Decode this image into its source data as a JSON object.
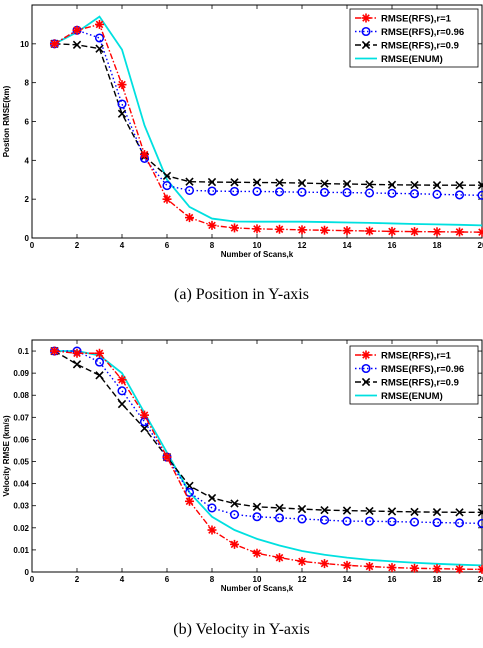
{
  "chart_data": [
    {
      "type": "line",
      "caption": "(a) Position in Y-axis",
      "xlabel": "Number of Scans,k",
      "ylabel": "Postion RMSE(km)",
      "xlim": [
        0,
        20
      ],
      "ylim": [
        0,
        12
      ],
      "xticks": [
        0,
        2,
        4,
        6,
        8,
        10,
        12,
        14,
        16,
        18,
        20
      ],
      "yticks": [
        0,
        2,
        4,
        6,
        8,
        10,
        12
      ],
      "ytick_labels": [
        "0",
        "2",
        "4",
        "6",
        "8",
        "10",
        ""
      ],
      "x": [
        1,
        2,
        3,
        4,
        5,
        6,
        7,
        8,
        9,
        10,
        11,
        12,
        13,
        14,
        15,
        16,
        17,
        18,
        19,
        20
      ],
      "legend_position": "top-right",
      "series": [
        {
          "name": "RMSE(RFS),r=1",
          "color": "#ff0000",
          "style": "dashdot",
          "marker": "star",
          "values": [
            10.0,
            10.7,
            11.0,
            7.9,
            4.3,
            2.0,
            1.05,
            0.65,
            0.52,
            0.47,
            0.45,
            0.42,
            0.4,
            0.38,
            0.36,
            0.34,
            0.33,
            0.32,
            0.31,
            0.3
          ]
        },
        {
          "name": "RMSE(RFS),r=0.96",
          "color": "#0000ff",
          "style": "dotted",
          "marker": "circle",
          "values": [
            10.0,
            10.7,
            10.3,
            6.9,
            4.1,
            2.7,
            2.45,
            2.42,
            2.4,
            2.4,
            2.38,
            2.36,
            2.35,
            2.34,
            2.32,
            2.3,
            2.28,
            2.25,
            2.22,
            2.2
          ]
        },
        {
          "name": "RMSE(RFS),r=0.9",
          "color": "#000000",
          "style": "dashed",
          "marker": "x",
          "values": [
            10.0,
            9.95,
            9.75,
            6.4,
            4.2,
            3.2,
            2.9,
            2.88,
            2.87,
            2.86,
            2.85,
            2.83,
            2.8,
            2.78,
            2.76,
            2.74,
            2.73,
            2.72,
            2.72,
            2.72
          ]
        },
        {
          "name": "RMSE(ENUM)",
          "color": "#00e0e0",
          "style": "solid",
          "marker": "none",
          "values": [
            10.0,
            10.6,
            11.4,
            9.7,
            5.8,
            3.0,
            1.6,
            1.0,
            0.85,
            0.84,
            0.84,
            0.84,
            0.82,
            0.8,
            0.78,
            0.75,
            0.72,
            0.7,
            0.68,
            0.65
          ]
        }
      ]
    },
    {
      "type": "line",
      "caption": "(b) Velocity in Y-axis",
      "xlabel": "Number of Scans,k",
      "ylabel": "Velocity RMSE (km/s)",
      "xlim": [
        0,
        20
      ],
      "ylim": [
        0,
        0.105
      ],
      "xticks": [
        0,
        2,
        4,
        6,
        8,
        10,
        12,
        14,
        16,
        18,
        20
      ],
      "yticks": [
        0,
        0.01,
        0.02,
        0.03,
        0.04,
        0.05,
        0.06,
        0.07,
        0.08,
        0.09,
        0.1
      ],
      "ytick_labels": [
        "0",
        "0.01",
        "0.02",
        "0.03",
        "0.04",
        "0.05",
        "0.06",
        "0.07",
        "0.08",
        "0.09",
        "0.1"
      ],
      "x": [
        1,
        2,
        3,
        4,
        5,
        6,
        7,
        8,
        9,
        10,
        11,
        12,
        13,
        14,
        15,
        16,
        17,
        18,
        19,
        20
      ],
      "legend_position": "top-right",
      "series": [
        {
          "name": "RMSE(RFS),r=1",
          "color": "#ff0000",
          "style": "dashdot",
          "marker": "star",
          "values": [
            0.1,
            0.099,
            0.099,
            0.087,
            0.071,
            0.052,
            0.032,
            0.019,
            0.0125,
            0.0085,
            0.0065,
            0.0048,
            0.0038,
            0.003,
            0.0025,
            0.002,
            0.0017,
            0.0015,
            0.0013,
            0.0012
          ]
        },
        {
          "name": "RMSE(RFS),r=0.96",
          "color": "#0000ff",
          "style": "dotted",
          "marker": "circle",
          "values": [
            0.1,
            0.1,
            0.095,
            0.082,
            0.068,
            0.052,
            0.036,
            0.029,
            0.026,
            0.025,
            0.0245,
            0.024,
            0.0235,
            0.023,
            0.023,
            0.0228,
            0.0226,
            0.0224,
            0.0222,
            0.022
          ]
        },
        {
          "name": "RMSE(RFS),r=0.9",
          "color": "#000000",
          "style": "dashed",
          "marker": "x",
          "values": [
            0.1,
            0.094,
            0.089,
            0.076,
            0.065,
            0.052,
            0.039,
            0.0335,
            0.031,
            0.0295,
            0.029,
            0.0285,
            0.028,
            0.0278,
            0.0276,
            0.0274,
            0.0272,
            0.0271,
            0.027,
            0.027
          ]
        },
        {
          "name": "RMSE(ENUM)",
          "color": "#00e0e0",
          "style": "solid",
          "marker": "none",
          "values": [
            0.1,
            0.1,
            0.098,
            0.09,
            0.072,
            0.054,
            0.036,
            0.025,
            0.019,
            0.015,
            0.012,
            0.0095,
            0.0078,
            0.0065,
            0.0055,
            0.0048,
            0.0042,
            0.0037,
            0.0033,
            0.003
          ]
        }
      ]
    }
  ]
}
